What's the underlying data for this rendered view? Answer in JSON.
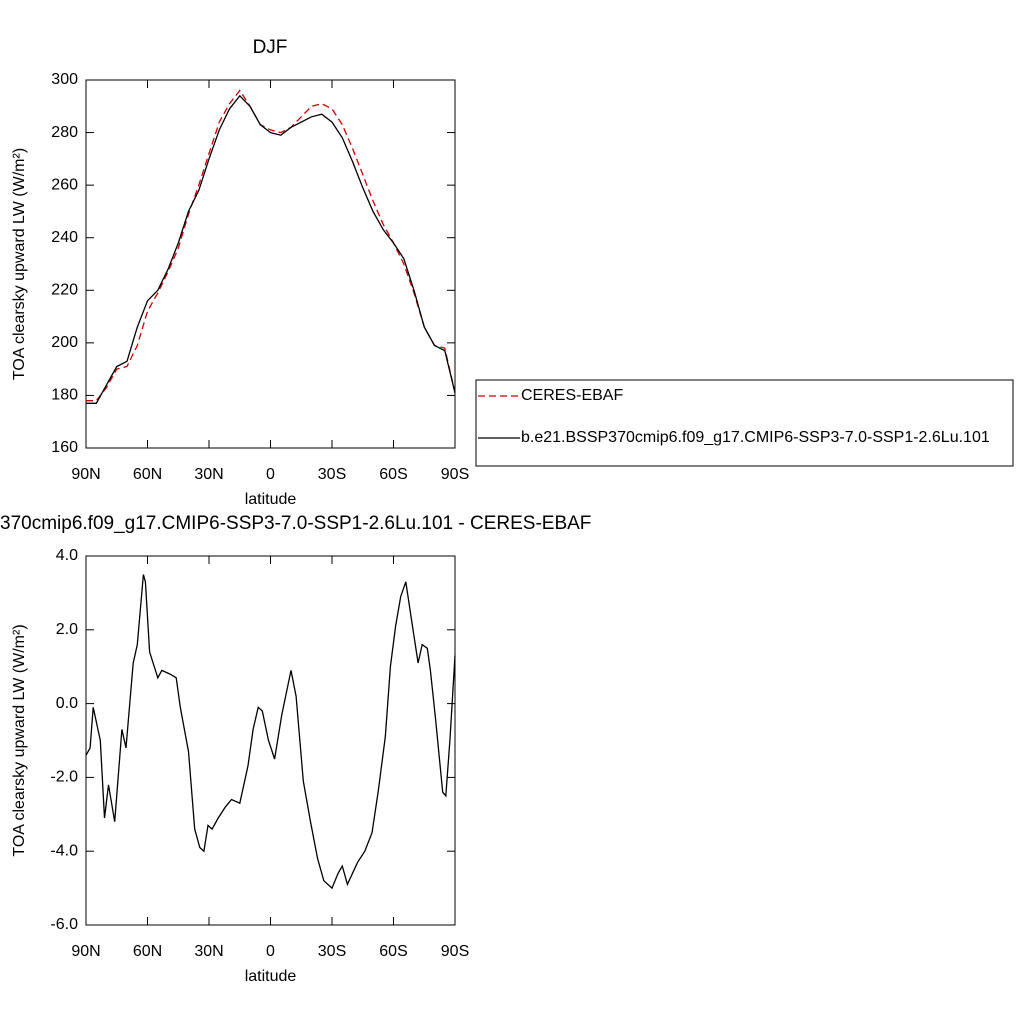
{
  "chart_data": [
    {
      "type": "line",
      "title": "DJF",
      "xlabel": "latitude",
      "ylabel": "TOA clearsky upward LW (W/m²)",
      "x": [
        90,
        85,
        80,
        75,
        70,
        65,
        60,
        55,
        50,
        45,
        40,
        35,
        30,
        25,
        20,
        15,
        10,
        5,
        0,
        -5,
        -10,
        -15,
        -20,
        -25,
        -30,
        -35,
        -40,
        -45,
        -50,
        -55,
        -60,
        -65,
        -70,
        -75,
        -80,
        -85,
        -90
      ],
      "series": [
        {
          "name": "CERES-EBAF",
          "color": "#cc0000",
          "dash": true,
          "values": [
            178,
            178,
            183,
            190,
            191,
            199,
            212,
            219,
            227,
            236,
            249,
            260,
            272,
            284,
            291,
            296,
            290,
            283,
            281,
            280,
            282,
            286,
            290,
            291,
            289,
            283,
            274,
            264,
            254,
            245,
            238,
            230,
            219,
            206,
            199,
            198,
            181
          ]
        },
        {
          "name": "b.e21.BSSP370cmip6.f09_g17.CMIP6-SSP3-7.0-SSP1-2.6Lu.101",
          "color": "#000000",
          "dash": false,
          "values": [
            177,
            177,
            184,
            191,
            193,
            206,
            216,
            220,
            228,
            238,
            250,
            258,
            270,
            281,
            289,
            294,
            290,
            283,
            280,
            279,
            282,
            284,
            286,
            287,
            284,
            278,
            269,
            259,
            250,
            243,
            238,
            232,
            220,
            206,
            199,
            197,
            181
          ]
        }
      ],
      "xlim": [
        90,
        -90
      ],
      "xticks": [
        {
          "value": 90,
          "label": "90N"
        },
        {
          "value": 60,
          "label": "60N"
        },
        {
          "value": 30,
          "label": "30N"
        },
        0,
        {
          "value": -30,
          "label": "30S"
        },
        {
          "value": -60,
          "label": "60S"
        },
        {
          "value": -90,
          "label": "90S"
        }
      ],
      "ylim": [
        160,
        300
      ],
      "yticks": [
        160,
        180,
        200,
        220,
        240,
        260,
        280,
        300
      ],
      "legend": "right"
    },
    {
      "type": "line",
      "title": "370cmip6.f09_g17.CMIP6-SSP3-7.0-SSP1-2.6Lu.101 - CERES-EBAF",
      "xlabel": "latitude",
      "ylabel": "TOA clearsky upward LW (W/m²)",
      "x": [
        90,
        88,
        86.5,
        83,
        81,
        79,
        76,
        72.5,
        70.5,
        67,
        65,
        62,
        61,
        59,
        55,
        53,
        49,
        46,
        44,
        40,
        37,
        34.5,
        32.5,
        30.5,
        28.5,
        25.5,
        22,
        19,
        15,
        11,
        8.5,
        6,
        4,
        1,
        -2,
        -5.5,
        -10,
        -12.5,
        -16,
        -19.5,
        -23,
        -26,
        -30,
        -33,
        -35,
        -37.5,
        -40,
        -42.5,
        -46,
        -49.5,
        -52.5,
        -56,
        -58.5,
        -61,
        -63.5,
        -66,
        -69,
        -72,
        -74,
        -76.5,
        -78,
        -80.5,
        -84,
        -85.5,
        -87.5,
        -90
      ],
      "values": [
        -1.4,
        -1.2,
        -0.1,
        -1.0,
        -3.1,
        -2.2,
        -3.2,
        -0.7,
        -1.2,
        1.1,
        1.6,
        3.5,
        3.3,
        1.4,
        0.7,
        0.9,
        0.8,
        0.7,
        -0.1,
        -1.3,
        -3.4,
        -3.9,
        -4.0,
        -3.3,
        -3.4,
        -3.1,
        -2.8,
        -2.6,
        -2.7,
        -1.7,
        -0.7,
        -0.1,
        -0.2,
        -1.0,
        -1.5,
        -0.3,
        0.9,
        0.2,
        -2.1,
        -3.2,
        -4.2,
        -4.8,
        -5.0,
        -4.6,
        -4.4,
        -4.9,
        -4.6,
        -4.3,
        -4.0,
        -3.5,
        -2.4,
        -0.9,
        1.0,
        2.1,
        2.9,
        3.3,
        2.2,
        1.1,
        1.6,
        1.5,
        0.9,
        -0.4,
        -2.4,
        -2.5,
        -1.0,
        1.3
      ],
      "color": "#000000",
      "xlim": [
        90,
        -90
      ],
      "xticks": [
        {
          "value": 90,
          "label": "90N"
        },
        {
          "value": 60,
          "label": "60N"
        },
        {
          "value": 30,
          "label": "30N"
        },
        0,
        {
          "value": -30,
          "label": "30S"
        },
        {
          "value": -60,
          "label": "60S"
        },
        {
          "value": -90,
          "label": "90S"
        }
      ],
      "ylim": [
        -6,
        4
      ],
      "yticks": [
        {
          "value": -6,
          "label": "-6.0"
        },
        {
          "value": -4,
          "label": "-4.0"
        },
        {
          "value": -2,
          "label": "-2.0"
        },
        {
          "value": 0,
          "label": "0.0"
        },
        {
          "value": 2,
          "label": "2.0"
        },
        {
          "value": 4,
          "label": "4.0"
        }
      ]
    }
  ]
}
